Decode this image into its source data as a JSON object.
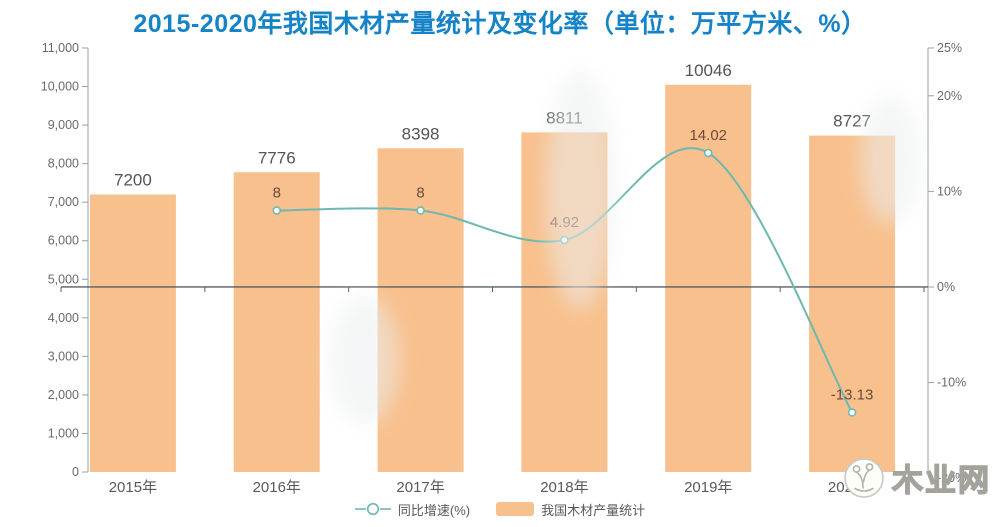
{
  "title": {
    "text": "2015-2020年我国木材产量统计及变化率（单位：万平方米、%）"
  },
  "chart_data": {
    "type": "combo-bar-line",
    "categories": [
      "2015年",
      "2016年",
      "2017年",
      "2018年",
      "2019年",
      "2020年"
    ],
    "series": [
      {
        "name": "我国木材产量统计",
        "type": "bar",
        "axis": "left",
        "color": "#f8c08c",
        "values": [
          7200,
          7776,
          8398,
          8811,
          10046,
          8727
        ],
        "labels": [
          "7200",
          "7776",
          "8398",
          "8811",
          "10046",
          "8727"
        ]
      },
      {
        "name": "同比增速(%)",
        "type": "line",
        "axis": "right",
        "color": "#6db8b0",
        "values": [
          null,
          8,
          8,
          4.92,
          14.02,
          -13.13
        ],
        "labels": [
          "",
          "8",
          "8",
          "4.92",
          "14.02",
          "-13.13"
        ]
      }
    ],
    "left_axis": {
      "min": 0,
      "max": 11000,
      "tick_step": 1000,
      "tick_labels": [
        "0",
        "1,000",
        "2,000",
        "3,000",
        "4,000",
        "5,000",
        "6,000",
        "7,000",
        "8,000",
        "9,000",
        "10,000",
        "11,000"
      ]
    },
    "right_axis": {
      "zero_percent_at_left_value": 4800,
      "top_percent": 25,
      "ticks": [
        {
          "v": 25,
          "label": "25%"
        },
        {
          "v": 20,
          "label": "20%"
        },
        {
          "v": 10,
          "label": "10%"
        },
        {
          "v": 0,
          "label": "0%"
        },
        {
          "v": -10,
          "label": "-10%"
        },
        {
          "v": -20,
          "label": "-20%"
        }
      ]
    },
    "grid": "zero-line-only",
    "legend_position": "bottom-center"
  },
  "watermark": {
    "text": "木业网"
  },
  "colors": {
    "title": "#1583c7",
    "bar": "#f8c08c",
    "line": "#6db8b0",
    "marker_fill": "#f7fffd",
    "axis_line": "#9aa0a3",
    "zero_line": "#555f66",
    "axis_text": "#6a6a6a",
    "category_text": "#595959",
    "bar_value_text": "#545454",
    "line_value_text": "#6f4a3c"
  }
}
